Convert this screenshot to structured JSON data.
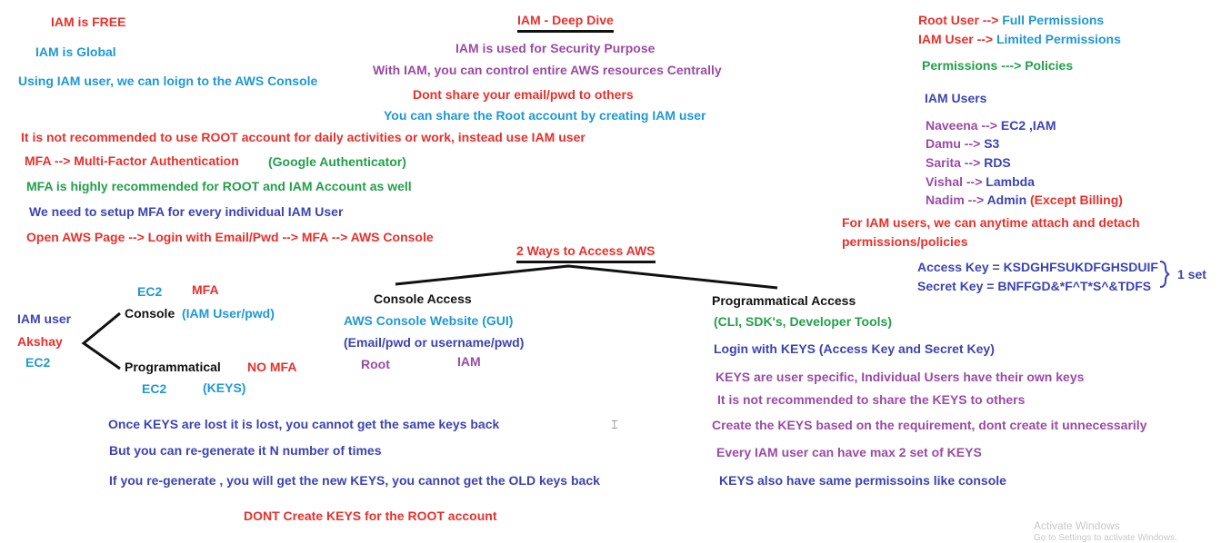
{
  "left": {
    "free": "IAM is FREE",
    "global": "IAM is Global",
    "console_login": "Using IAM user, we can loign to the AWS Console",
    "not_recommended": "It is not recommended to use ROOT account for daily activities or work, instead use IAM user",
    "mfa": "MFA --> Multi-Factor Authentication",
    "mfa_app": "(Google Authenticator)",
    "mfa_recommended": "MFA is highly recommended for ROOT and IAM Account as well",
    "mfa_setup": "We need to setup MFA for every individual IAM User",
    "flow": "Open AWS Page --> Login with Email/Pwd --> MFA --> AWS Console"
  },
  "center": {
    "title": "IAM - Deep Dive",
    "security": "IAM is used for Security Purpose",
    "control": "With IAM, you can control entire AWS resources Centrally",
    "dont_share": "Dont share your email/pwd to others",
    "share_root": "You can share the Root account by creating IAM user"
  },
  "right": {
    "root_user": "Root User",
    "root_arrow": " --> ",
    "root_perm": "Full Permissions",
    "iam_user": "IAM User",
    "iam_arrow": " --> ",
    "iam_perm": "Limited Permissions",
    "policies": "Permissions ---> Policies",
    "users_heading": "IAM Users",
    "users": [
      {
        "name": "Naveena",
        "arrow": " --> ",
        "value": "EC2 ,IAM"
      },
      {
        "name": "Damu",
        "arrow": " --> ",
        "value": "S3"
      },
      {
        "name": "Sarita",
        "arrow": " --> ",
        "value": "RDS"
      },
      {
        "name": "Vishal",
        "arrow": " --> ",
        "value": "Lambda"
      },
      {
        "name": "Nadim",
        "arrow": " --> ",
        "value": "Admin",
        "extra": " (Except Billing)"
      }
    ],
    "attach_1": "For IAM users, we can anytime attach and detach",
    "attach_2": "permissions/policies",
    "access_key": "Access Key = KSDGHFSUKDFGHSDUIF",
    "secret_key": "Secret Key = BNFFGD&*F^T*S^&TDFS",
    "one_set": "1 set"
  },
  "access": {
    "heading": "2 Ways to Access AWS",
    "console_heading": "Console Access",
    "console_site": "AWS Console Website (GUI)",
    "console_creds": "(Email/pwd or username/pwd)",
    "root": "Root",
    "iam": "IAM",
    "prog_heading": "Programmatical Access",
    "prog_tools": "(CLI, SDK's, Developer Tools)",
    "prog_login": "Login with KEYS (Access Key and Secret Key)",
    "prog_notes": [
      "KEYS are user specific, Individual Users have their own keys",
      "It is not recommended to share the KEYS to others",
      "Create the KEYS based on the requirement, dont create it unnecessarily",
      "Every IAM user can have max 2 set of KEYS",
      "KEYS also have same permissoins like console"
    ]
  },
  "diagram": {
    "iam_user": "IAM user",
    "name": "Akshay",
    "ec2": "EC2",
    "console_ec2": "EC2",
    "console_mfa": "MFA",
    "console": "Console",
    "console_cred": "(IAM User/pwd)",
    "prog": "Programmatical",
    "prog_mfa": "NO MFA",
    "prog_ec2": "EC2",
    "prog_keys": "(KEYS)"
  },
  "keys_notes": {
    "lost": "Once KEYS are lost it is lost, you cannot get the same keys back",
    "regen": "But you can re-generate it N number of times",
    "new": "If you re-generate , you will get the new KEYS, you cannot get the OLD keys back",
    "dont_root": "DONT Create KEYS for the ROOT account"
  },
  "watermark": {
    "line1": "Activate Windows",
    "line2": "Go to Settings to activate Windows."
  },
  "colors": {
    "red": "#e8302b",
    "blue": "#1e98d6",
    "purple": "#9b4aa6",
    "green": "#22a04a",
    "navy": "#3b44b3"
  }
}
